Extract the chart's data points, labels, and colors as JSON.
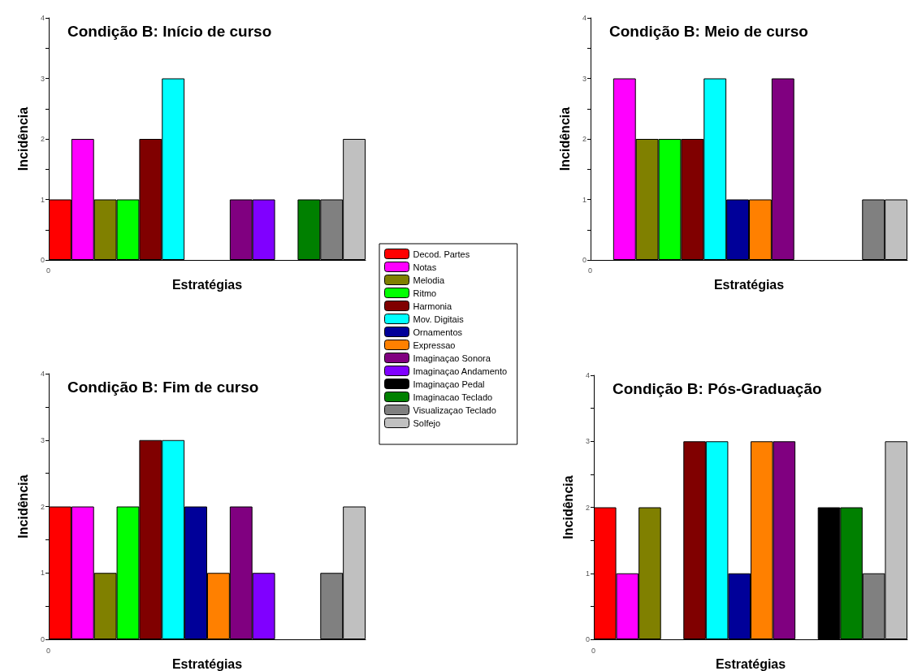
{
  "chart_data": [
    {
      "type": "bar",
      "title": "Condição B: Início de curso",
      "xlabel": "Estratégias",
      "ylabel": "Incidência",
      "annotations": [
        "0"
      ],
      "categories": [
        null,
        null,
        null,
        null,
        null,
        null,
        null,
        null,
        null,
        null,
        null,
        null,
        null,
        null
      ],
      "ylim": [
        0,
        4
      ],
      "yticks": [
        0,
        {
          "value": 0.5,
          "label": null
        },
        1,
        {
          "value": 1.5,
          "label": null
        },
        2,
        {
          "value": 2.5,
          "label": null
        },
        3,
        {
          "value": 3.5,
          "label": null
        },
        4
      ],
      "grid": false,
      "legend": "right",
      "series": [
        {
          "name": "Decod. Partes",
          "color": "#ff0000",
          "values": [
            1,
            null,
            null,
            null,
            null,
            null,
            null,
            null,
            null,
            null,
            null,
            null,
            null,
            null
          ]
        },
        {
          "name": "Notas",
          "color": "#ff00ff",
          "values": [
            null,
            2,
            null,
            null,
            null,
            null,
            null,
            null,
            null,
            null,
            null,
            null,
            null,
            null
          ]
        },
        {
          "name": "Melodia",
          "color": "#808000",
          "values": [
            null,
            null,
            1,
            null,
            null,
            null,
            null,
            null,
            null,
            null,
            null,
            null,
            null,
            null
          ]
        },
        {
          "name": "Ritmo",
          "color": "#00ff00",
          "values": [
            null,
            null,
            null,
            1,
            null,
            null,
            null,
            null,
            null,
            null,
            null,
            null,
            null,
            null
          ]
        },
        {
          "name": "Harmonia",
          "color": "#800000",
          "values": [
            null,
            null,
            null,
            null,
            2,
            null,
            null,
            null,
            null,
            null,
            null,
            null,
            null,
            null
          ]
        },
        {
          "name": "Mov. Digitais",
          "color": "#00ffff",
          "values": [
            null,
            null,
            null,
            null,
            null,
            3,
            null,
            null,
            null,
            null,
            null,
            null,
            null,
            null
          ]
        },
        {
          "name": "Ornamentos",
          "color": "#000099",
          "values": [
            null,
            null,
            null,
            null,
            null,
            null,
            null,
            null,
            null,
            null,
            null,
            null,
            null,
            null
          ]
        },
        {
          "name": "Expressao",
          "color": "#ff8000",
          "values": [
            null,
            null,
            null,
            null,
            null,
            null,
            null,
            null,
            null,
            null,
            null,
            null,
            null,
            null
          ]
        },
        {
          "name": "Imaginaçao Sonora",
          "color": "#800080",
          "values": [
            null,
            null,
            null,
            null,
            null,
            null,
            null,
            null,
            1,
            null,
            null,
            null,
            null,
            null
          ]
        },
        {
          "name": "Imaginaçao Andamento",
          "color": "#8000ff",
          "values": [
            null,
            null,
            null,
            null,
            null,
            null,
            null,
            null,
            null,
            1,
            null,
            null,
            null,
            null
          ]
        },
        {
          "name": "Imaginaçao Pedal",
          "color": "#000000",
          "values": [
            null,
            null,
            null,
            null,
            null,
            null,
            null,
            null,
            null,
            null,
            null,
            null,
            null,
            null
          ]
        },
        {
          "name": "Imaginacao Teclado",
          "color": "#008000",
          "values": [
            null,
            null,
            null,
            null,
            null,
            null,
            null,
            null,
            null,
            null,
            null,
            1,
            null,
            null
          ]
        },
        {
          "name": "Visualizaçao Teclado",
          "color": "#808080",
          "values": [
            null,
            null,
            null,
            null,
            null,
            null,
            null,
            null,
            null,
            null,
            null,
            null,
            1,
            null
          ]
        },
        {
          "name": "Solfejo",
          "color": "#c0c0c0",
          "values": [
            null,
            null,
            null,
            null,
            null,
            null,
            null,
            null,
            null,
            null,
            null,
            null,
            null,
            2
          ]
        }
      ]
    },
    {
      "type": "bar",
      "title": "Condição B: Meio de curso",
      "xlabel": "Estratégias",
      "ylabel": "Incidência",
      "annotations": [
        "0"
      ],
      "categories": [
        null,
        null,
        null,
        null,
        null,
        null,
        null,
        null,
        null,
        null,
        null,
        null,
        null,
        null
      ],
      "ylim": [
        0,
        4
      ],
      "yticks": [
        0,
        {
          "value": 0.5,
          "label": null
        },
        1,
        {
          "value": 1.5,
          "label": null
        },
        2,
        {
          "value": 2.5,
          "label": null
        },
        3,
        {
          "value": 3.5,
          "label": null
        },
        4
      ],
      "grid": false,
      "legend": false,
      "series": [
        {
          "color": "#ff00ff",
          "values": [
            null,
            3,
            null,
            null,
            null,
            null,
            null,
            null,
            null,
            null,
            null,
            null,
            null,
            null
          ]
        },
        {
          "color": "#808000",
          "values": [
            null,
            null,
            2,
            null,
            null,
            null,
            null,
            null,
            null,
            null,
            null,
            null,
            null,
            null
          ]
        },
        {
          "color": "#00ff00",
          "values": [
            null,
            null,
            null,
            2,
            null,
            null,
            null,
            null,
            null,
            null,
            null,
            null,
            null,
            null
          ]
        },
        {
          "color": "#800000",
          "values": [
            null,
            null,
            null,
            null,
            2,
            null,
            null,
            null,
            null,
            null,
            null,
            null,
            null,
            null
          ]
        },
        {
          "color": "#00ffff",
          "values": [
            null,
            null,
            null,
            null,
            null,
            3,
            null,
            null,
            null,
            null,
            null,
            null,
            null,
            null
          ]
        },
        {
          "color": "#000099",
          "values": [
            null,
            null,
            null,
            null,
            null,
            null,
            1,
            null,
            null,
            null,
            null,
            null,
            null,
            null
          ]
        },
        {
          "color": "#ff8000",
          "values": [
            null,
            null,
            null,
            null,
            null,
            null,
            null,
            1,
            null,
            null,
            null,
            null,
            null,
            null
          ]
        },
        {
          "color": "#800080",
          "values": [
            null,
            null,
            null,
            null,
            null,
            null,
            null,
            null,
            3,
            null,
            null,
            null,
            null,
            null
          ]
        },
        {
          "color": "#808080",
          "values": [
            null,
            null,
            null,
            null,
            null,
            null,
            null,
            null,
            null,
            null,
            null,
            null,
            1,
            null
          ]
        },
        {
          "color": "#c0c0c0",
          "values": [
            null,
            null,
            null,
            null,
            null,
            null,
            null,
            null,
            null,
            null,
            null,
            null,
            null,
            1
          ]
        }
      ]
    },
    {
      "type": "bar",
      "title": "Condição B: Fim de curso",
      "xlabel": "Estratégias",
      "ylabel": "Incidência",
      "annotations": [
        "0"
      ],
      "categories": [
        null,
        null,
        null,
        null,
        null,
        null,
        null,
        null,
        null,
        null,
        null,
        null,
        null,
        null
      ],
      "ylim": [
        0,
        4
      ],
      "yticks": [
        0,
        {
          "value": 0.5,
          "label": null
        },
        1,
        {
          "value": 1.5,
          "label": null
        },
        2,
        {
          "value": 2.5,
          "label": null
        },
        3,
        {
          "value": 3.5,
          "label": null
        },
        4
      ],
      "grid": false,
      "legend": false,
      "series": [
        {
          "color": "#ff0000",
          "values": [
            2,
            null,
            null,
            null,
            null,
            null,
            null,
            null,
            null,
            null,
            null,
            null,
            null,
            null
          ]
        },
        {
          "color": "#ff00ff",
          "values": [
            null,
            2,
            null,
            null,
            null,
            null,
            null,
            null,
            null,
            null,
            null,
            null,
            null,
            null
          ]
        },
        {
          "color": "#808000",
          "values": [
            null,
            null,
            1,
            null,
            null,
            null,
            null,
            null,
            null,
            null,
            null,
            null,
            null,
            null
          ]
        },
        {
          "color": "#00ff00",
          "values": [
            null,
            null,
            null,
            2,
            null,
            null,
            null,
            null,
            null,
            null,
            null,
            null,
            null,
            null
          ]
        },
        {
          "color": "#800000",
          "values": [
            null,
            null,
            null,
            null,
            3,
            null,
            null,
            null,
            null,
            null,
            null,
            null,
            null,
            null
          ]
        },
        {
          "color": "#00ffff",
          "values": [
            null,
            null,
            null,
            null,
            null,
            3,
            null,
            null,
            null,
            null,
            null,
            null,
            null,
            null
          ]
        },
        {
          "color": "#000099",
          "values": [
            null,
            null,
            null,
            null,
            null,
            null,
            2,
            null,
            null,
            null,
            null,
            null,
            null,
            null
          ]
        },
        {
          "color": "#ff8000",
          "values": [
            null,
            null,
            null,
            null,
            null,
            null,
            null,
            1,
            null,
            null,
            null,
            null,
            null,
            null
          ]
        },
        {
          "color": "#800080",
          "values": [
            null,
            null,
            null,
            null,
            null,
            null,
            null,
            null,
            2,
            null,
            null,
            null,
            null,
            null
          ]
        },
        {
          "color": "#8000ff",
          "values": [
            null,
            null,
            null,
            null,
            null,
            null,
            null,
            null,
            null,
            1,
            null,
            null,
            null,
            null
          ]
        },
        {
          "color": "#808080",
          "values": [
            null,
            null,
            null,
            null,
            null,
            null,
            null,
            null,
            null,
            null,
            null,
            null,
            1,
            null
          ]
        },
        {
          "color": "#c0c0c0",
          "values": [
            null,
            null,
            null,
            null,
            null,
            null,
            null,
            null,
            null,
            null,
            null,
            null,
            null,
            2
          ]
        }
      ]
    },
    {
      "type": "bar",
      "title": "Condição B: Pós-Graduação",
      "xlabel": "Estratégias",
      "ylabel": "Incidência",
      "annotations": [
        "0"
      ],
      "categories": [
        null,
        null,
        null,
        null,
        null,
        null,
        null,
        null,
        null,
        null,
        null,
        null,
        null,
        null
      ],
      "ylim": [
        0,
        4
      ],
      "yticks": [
        0,
        {
          "value": 0.5,
          "label": null
        },
        1,
        {
          "value": 1.5,
          "label": null
        },
        2,
        {
          "value": 2.5,
          "label": null
        },
        3,
        {
          "value": 3.5,
          "label": null
        },
        4
      ],
      "grid": false,
      "legend": false,
      "series": [
        {
          "color": "#ff0000",
          "values": [
            2,
            null,
            null,
            null,
            null,
            null,
            null,
            null,
            null,
            null,
            null,
            null,
            null,
            null
          ]
        },
        {
          "color": "#ff00ff",
          "values": [
            null,
            1,
            null,
            null,
            null,
            null,
            null,
            null,
            null,
            null,
            null,
            null,
            null,
            null
          ]
        },
        {
          "color": "#808000",
          "values": [
            null,
            null,
            2,
            null,
            null,
            null,
            null,
            null,
            null,
            null,
            null,
            null,
            null,
            null
          ]
        },
        {
          "color": "#800000",
          "values": [
            null,
            null,
            null,
            null,
            3,
            null,
            null,
            null,
            null,
            null,
            null,
            null,
            null,
            null
          ]
        },
        {
          "color": "#00ffff",
          "values": [
            null,
            null,
            null,
            null,
            null,
            3,
            null,
            null,
            null,
            null,
            null,
            null,
            null,
            null
          ]
        },
        {
          "color": "#000099",
          "values": [
            null,
            null,
            null,
            null,
            null,
            null,
            1,
            null,
            null,
            null,
            null,
            null,
            null,
            null
          ]
        },
        {
          "color": "#ff8000",
          "values": [
            null,
            null,
            null,
            null,
            null,
            null,
            null,
            3,
            null,
            null,
            null,
            null,
            null,
            null
          ]
        },
        {
          "color": "#800080",
          "values": [
            null,
            null,
            null,
            null,
            null,
            null,
            null,
            null,
            3,
            null,
            null,
            null,
            null,
            null
          ]
        },
        {
          "color": "#000000",
          "values": [
            null,
            null,
            null,
            null,
            null,
            null,
            null,
            null,
            null,
            null,
            2,
            null,
            null,
            null
          ]
        },
        {
          "color": "#008000",
          "values": [
            null,
            null,
            null,
            null,
            null,
            null,
            null,
            null,
            null,
            null,
            null,
            2,
            null,
            null
          ]
        },
        {
          "color": "#808080",
          "values": [
            null,
            null,
            null,
            null,
            null,
            null,
            null,
            null,
            null,
            null,
            null,
            null,
            1,
            null
          ]
        },
        {
          "color": "#c0c0c0",
          "values": [
            null,
            null,
            null,
            null,
            null,
            null,
            null,
            null,
            null,
            null,
            null,
            null,
            null,
            3
          ]
        }
      ]
    }
  ]
}
